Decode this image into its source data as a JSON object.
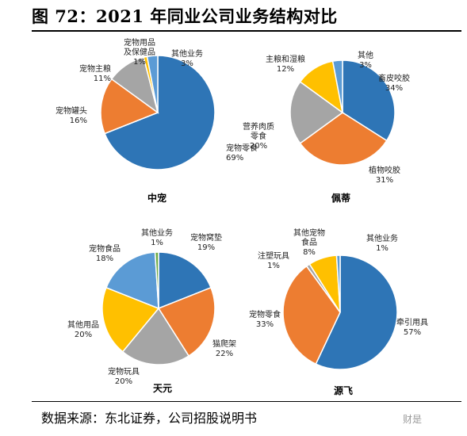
{
  "figure_title": "图 72：2021 年同业公司业务结构对比",
  "source": "数据来源：东北证券，公司招股说明书",
  "watermark": "财是",
  "colors": {
    "blue": "#2e75b6",
    "orange": "#ed7d31",
    "gray": "#a5a5a5",
    "yellow": "#ffc000",
    "lightblue": "#5b9bd5",
    "green": "#70ad47"
  },
  "chart_data": [
    {
      "type": "pie",
      "title": "中宠",
      "slices": [
        {
          "lines": [
            "宠物零食"
          ],
          "value": 69,
          "pct": "69%",
          "color": "blue"
        },
        {
          "lines": [
            "宠物罐头"
          ],
          "value": 16,
          "pct": "16%",
          "color": "orange"
        },
        {
          "lines": [
            "宠物主粮"
          ],
          "value": 11,
          "pct": "11%",
          "color": "gray"
        },
        {
          "lines": [
            "宠物用品",
            "及保健品"
          ],
          "value": 1,
          "pct": "1%",
          "color": "yellow"
        },
        {
          "lines": [
            "其他业务"
          ],
          "value": 3,
          "pct": "3%",
          "color": "lightblue"
        }
      ]
    },
    {
      "type": "pie",
      "title": "佩蒂",
      "slices": [
        {
          "lines": [
            "畜皮咬胶"
          ],
          "value": 34,
          "pct": "34%",
          "color": "blue"
        },
        {
          "lines": [
            "植物咬胶"
          ],
          "value": 31,
          "pct": "31%",
          "color": "orange"
        },
        {
          "lines": [
            "营养肉质",
            "零食"
          ],
          "value": 20,
          "pct": "20%",
          "color": "gray"
        },
        {
          "lines": [
            "主粮和湿粮"
          ],
          "value": 12,
          "pct": "12%",
          "color": "yellow"
        },
        {
          "lines": [
            "其他"
          ],
          "value": 3,
          "pct": "3%",
          "color": "lightblue"
        }
      ]
    },
    {
      "type": "pie",
      "title": "天元",
      "slices": [
        {
          "lines": [
            "宠物窝垫"
          ],
          "value": 19,
          "pct": "19%",
          "color": "blue"
        },
        {
          "lines": [
            "猫爬架"
          ],
          "value": 22,
          "pct": "22%",
          "color": "orange"
        },
        {
          "lines": [
            "宠物玩具"
          ],
          "value": 20,
          "pct": "20%",
          "color": "gray"
        },
        {
          "lines": [
            "其他用品"
          ],
          "value": 20,
          "pct": "20%",
          "color": "yellow"
        },
        {
          "lines": [
            "宠物食品"
          ],
          "value": 18,
          "pct": "18%",
          "color": "lightblue"
        },
        {
          "lines": [
            "其他业务"
          ],
          "value": 1,
          "pct": "1%",
          "color": "green"
        }
      ]
    },
    {
      "type": "pie",
      "title": "源飞",
      "slices": [
        {
          "lines": [
            "牵引用具"
          ],
          "value": 57,
          "pct": "57%",
          "color": "blue"
        },
        {
          "lines": [
            "宠物零食"
          ],
          "value": 33,
          "pct": "33%",
          "color": "orange"
        },
        {
          "lines": [
            "注塑玩具"
          ],
          "value": 1,
          "pct": "1%",
          "color": "gray"
        },
        {
          "lines": [
            "其他宠物",
            "食品"
          ],
          "value": 8,
          "pct": "8%",
          "color": "yellow"
        },
        {
          "lines": [
            "其他业务"
          ],
          "value": 1,
          "pct": "1%",
          "color": "lightblue"
        }
      ]
    }
  ]
}
